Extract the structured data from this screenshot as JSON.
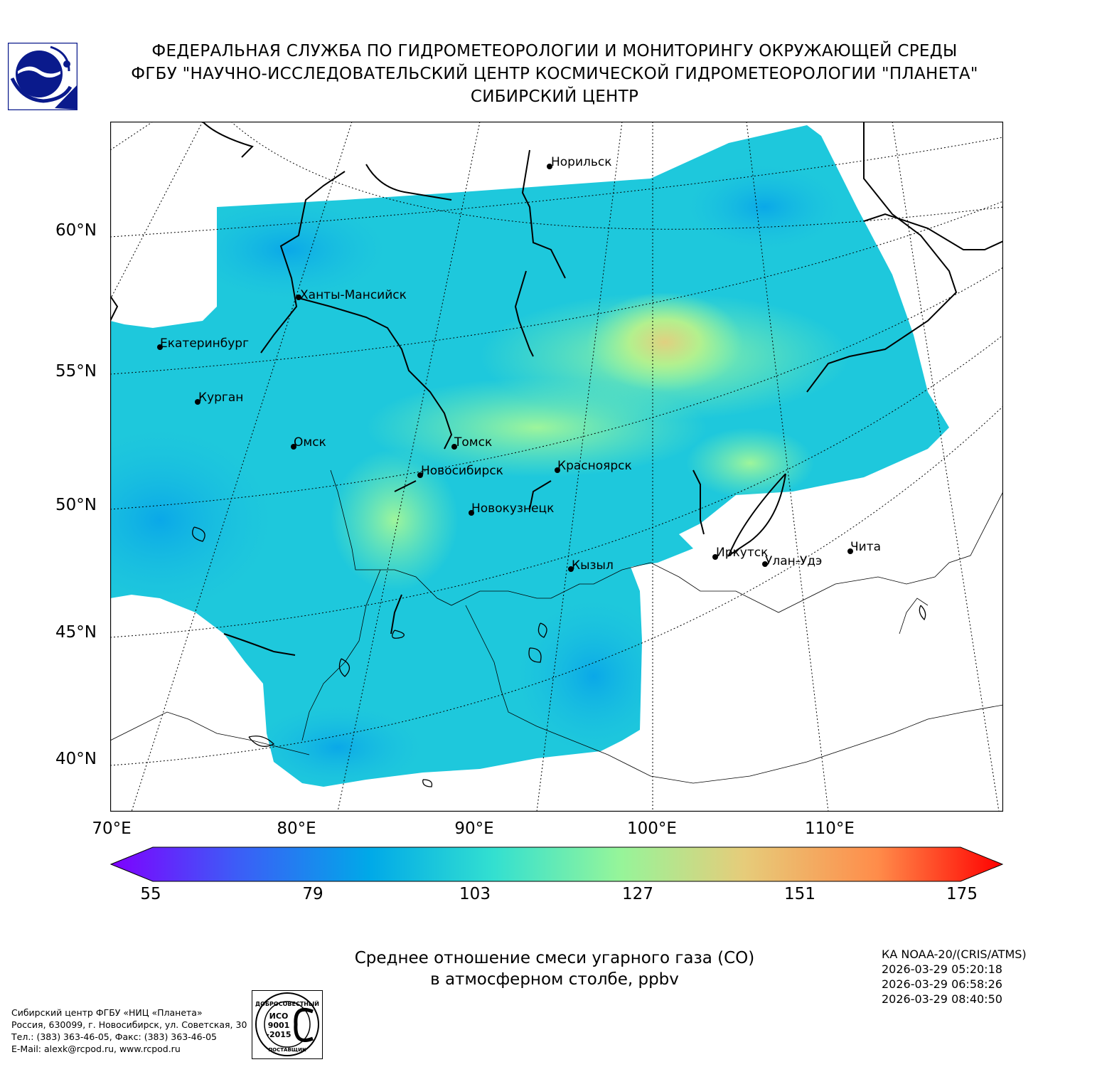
{
  "header": {
    "line1": "ФЕДЕРАЛЬНАЯ СЛУЖБА ПО ГИДРОМЕТЕОРОЛОГИИ И МОНИТОРИНГУ ОКРУЖАЮЩЕЙ СРЕДЫ",
    "line2": "ФГБУ \"НАУЧНО-ИССЛЕДОВАТЕЛЬСКИЙ ЦЕНТР КОСМИЧЕСКОЙ ГИДРОМЕТЕОРОЛОГИИ \"ПЛАНЕТА\"",
    "line3": "СИБИРСКИЙ ЦЕНТР"
  },
  "logo": {
    "icon": "planeta-logo-icon",
    "color": "#0a1a8c"
  },
  "map": {
    "lat_labels": [
      "60°N",
      "55°N",
      "50°N",
      "45°N",
      "40°N"
    ],
    "lon_labels": [
      "70°E",
      "80°E",
      "90°E",
      "100°E",
      "110°E"
    ],
    "cities": [
      {
        "name": "Норильск"
      },
      {
        "name": "Ханты-Мансийск"
      },
      {
        "name": "Екатеринбург"
      },
      {
        "name": "Курган"
      },
      {
        "name": "Омск"
      },
      {
        "name": "Томск"
      },
      {
        "name": "Новосибирск"
      },
      {
        "name": "Красноярск"
      },
      {
        "name": "Новокузнецк"
      },
      {
        "name": "Иркутск"
      },
      {
        "name": "Чита"
      },
      {
        "name": "Улан-Удэ"
      },
      {
        "name": "Кызыл"
      }
    ]
  },
  "colorbar": {
    "ticks": [
      "55",
      "79",
      "103",
      "127",
      "151",
      "175"
    ],
    "colors": [
      "#7f00ff",
      "#3d5cf7",
      "#00a9e8",
      "#33e0d0",
      "#95f59a",
      "#e6cc7a",
      "#ff8c4a",
      "#ff0000"
    ]
  },
  "caption": {
    "line1": "Среднее отношение смеси угарного газа (CO)",
    "line2": "в атмосферном столбе, ppbv"
  },
  "satellite": {
    "name": "КА NOAA-20/(CRIS/ATMS)",
    "times": [
      "2026-03-29 05:20:18",
      "2026-03-29 06:58:26",
      "2026-03-29 08:40:50"
    ]
  },
  "footer": {
    "org": "Сибирский центр ФГБУ «НИЦ «Планета»",
    "address": "Россия, 630099, г. Новосибирск, ул. Советская, 30",
    "phone": "Тел.: (383) 363-46-05, Факс: (383) 363-46-05",
    "email": "E-Mail: alexk@rcpod.ru, www.rcpod.ru"
  },
  "iso_stamp": {
    "icon": "iso-certification-stamp-icon",
    "top_text": "ДОБРОСОВЕСТНЫЙ",
    "iso": "ИСО",
    "num1": "9001",
    "num2": "-2015",
    "bottom_text": "ПОСТАВЩИК"
  }
}
